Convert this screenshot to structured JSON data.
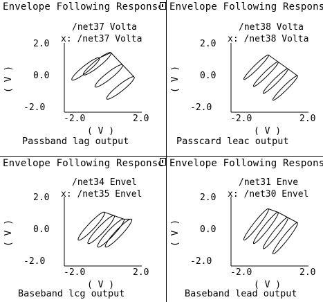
{
  "chart_data": [
    {
      "type": "line",
      "title": "Envelope Following Response",
      "trace_lines": [
        "/net37 Volta",
        "x: /net37 Volta"
      ],
      "xlabel": "( V )",
      "ylabel": "( V )",
      "xlim": [
        -2.0,
        2.0
      ],
      "ylim": [
        -2.0,
        2.0
      ],
      "x_ticks": [
        "-2.0",
        "2.0"
      ],
      "y_ticks": [
        "2.0",
        "0.0",
        "-2.0"
      ],
      "caption": "Passband lag output",
      "series": [
        {
          "lobes": [
            [
              -0.9,
              0.5
            ],
            [
              -0.3,
              0.8
            ],
            [
              0.3,
              0.1
            ],
            [
              0.9,
              -0.6
            ]
          ],
          "major": 0.95,
          "minor": 0.18,
          "angle_deg": 42
        }
      ]
    },
    {
      "type": "line",
      "title": "Envelope Following Respons",
      "trace_lines": [
        "/net38 Volta",
        "x: /net38 Volta"
      ],
      "xlabel": "( V )",
      "ylabel": "( V )",
      "xlim": [
        -2.0,
        2.0
      ],
      "ylim": [
        -2.0,
        2.0
      ],
      "x_ticks": [
        "-2.0",
        "2.0"
      ],
      "y_ticks": [
        "2.0",
        "0.0",
        "-2.0"
      ],
      "caption": "Passcard leac output",
      "series": [
        {
          "lobes": [
            [
              -0.7,
              0.6
            ],
            [
              -0.2,
              0.2
            ],
            [
              0.3,
              -0.2
            ],
            [
              0.8,
              -0.6
            ]
          ],
          "major": 0.95,
          "minor": 0.12,
          "angle_deg": 48
        }
      ]
    },
    {
      "type": "line",
      "title": "Envelope Following Response",
      "trace_lines": [
        "/net34 Envel",
        "x: /net35 Envel"
      ],
      "xlabel": "( V )",
      "ylabel": "( V )",
      "xlim": [
        -2.0,
        2.0
      ],
      "ylim": [
        -2.0,
        2.0
      ],
      "x_ticks": [
        "-2.0",
        "2.0"
      ],
      "y_ticks": [
        "2.0",
        "0.0",
        "-2.0"
      ],
      "caption": "Baseband lcg output",
      "series": [
        {
          "lobes": [
            [
              -0.6,
              0.3
            ],
            [
              -0.1,
              0.1
            ],
            [
              0.4,
              -0.1
            ],
            [
              0.8,
              -0.1
            ]
          ],
          "major": 1.05,
          "minor": 0.18,
          "angle_deg": 50
        }
      ]
    },
    {
      "type": "line",
      "title": "Envelope Following Respons",
      "trace_lines": [
        "/net31 Enve",
        "x: /net30 Envel"
      ],
      "xlabel": "( V )",
      "ylabel": "( V )",
      "xlim": [
        -2.0,
        2.0
      ],
      "ylim": [
        -2.0,
        2.0
      ],
      "x_ticks": [
        "-2.0",
        "2.0"
      ],
      "y_ticks": [
        "2.0",
        "0.0",
        "-2.0"
      ],
      "caption": "Baseband lead output",
      "series": [
        {
          "lobes": [
            [
              -0.7,
              0.4
            ],
            [
              -0.2,
              0.2
            ],
            [
              0.3,
              -0.1
            ],
            [
              0.8,
              -0.4
            ]
          ],
          "major": 1.1,
          "minor": 0.14,
          "angle_deg": 55
        }
      ]
    }
  ]
}
